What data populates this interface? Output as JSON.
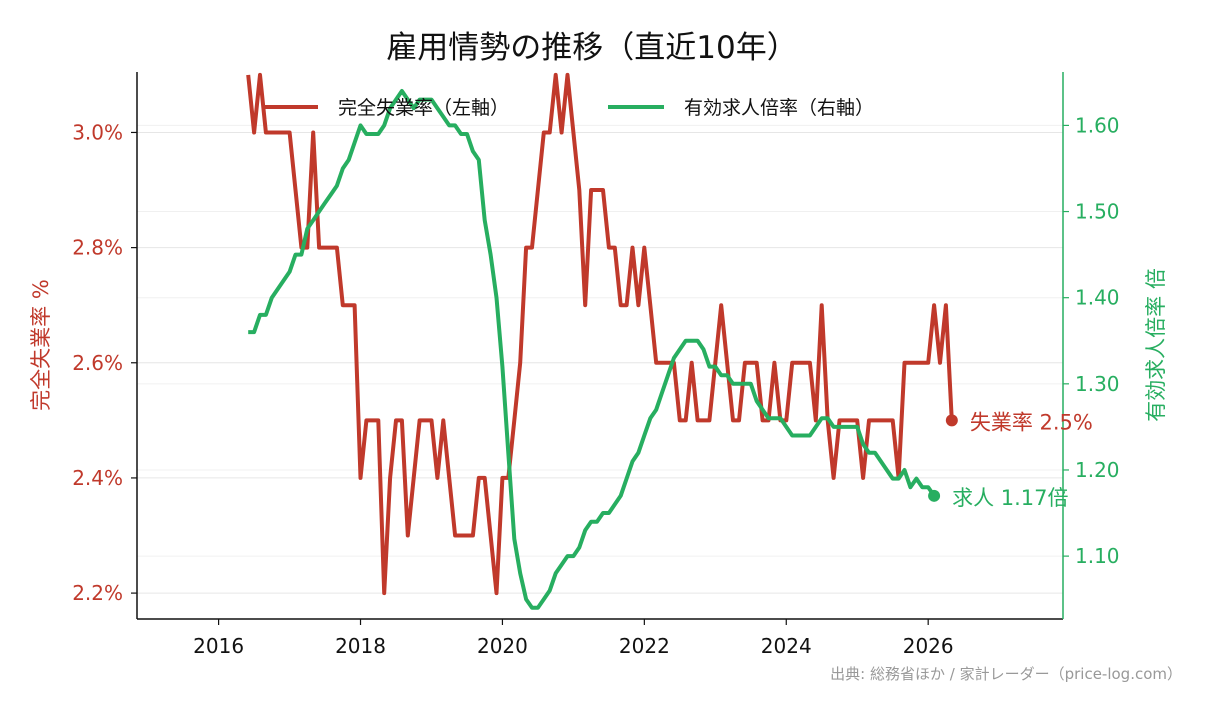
{
  "chart_data": {
    "type": "line",
    "title": "雇用情勢の推移（直近10年）",
    "source": "出典: 総務省ほか / 家計レーダー（price-log.com）",
    "x_axis": {
      "ticks": [
        "2016",
        "2018",
        "2020",
        "2022",
        "2024",
        "2026"
      ],
      "range": [
        2014.85,
        2027.9
      ]
    },
    "y_left": {
      "label": "完全失業率 %",
      "ticks": [
        "2.2%",
        "2.4%",
        "2.6%",
        "2.8%",
        "3.0%"
      ],
      "range": [
        2.155,
        3.105
      ],
      "color": "#c0392b"
    },
    "y_right": {
      "label": "有効求人倍率 倍",
      "ticks": [
        "1.10",
        "1.20",
        "1.30",
        "1.40",
        "1.50",
        "1.60"
      ],
      "range": [
        1.027,
        1.662
      ],
      "color": "#27ae60"
    },
    "legend": {
      "placement": "top-center",
      "entries": [
        "完全失業率（左軸）",
        "有効求人倍率（右軸）"
      ]
    },
    "grid": true,
    "series": [
      {
        "name": "完全失業率（左軸）",
        "axis": "left",
        "color": "#c0392b",
        "start": [
          2016,
          6
        ],
        "values": [
          3.1,
          3.0,
          3.1,
          3.0,
          3.0,
          3.0,
          3.0,
          3.0,
          2.9,
          2.8,
          2.8,
          3.0,
          2.8,
          2.8,
          2.8,
          2.8,
          2.7,
          2.7,
          2.7,
          2.4,
          2.5,
          2.5,
          2.5,
          2.2,
          2.4,
          2.5,
          2.5,
          2.3,
          2.4,
          2.5,
          2.5,
          2.5,
          2.4,
          2.5,
          2.4,
          2.3,
          2.3,
          2.3,
          2.3,
          2.4,
          2.4,
          2.3,
          2.2,
          2.4,
          2.4,
          2.5,
          2.6,
          2.8,
          2.8,
          2.9,
          3.0,
          3.0,
          3.1,
          3.0,
          3.1,
          3.0,
          2.9,
          2.7,
          2.9,
          2.9,
          2.9,
          2.8,
          2.8,
          2.7,
          2.7,
          2.8,
          2.7,
          2.8,
          2.7,
          2.6,
          2.6,
          2.6,
          2.6,
          2.5,
          2.5,
          2.6,
          2.5,
          2.5,
          2.5,
          2.6,
          2.7,
          2.6,
          2.5,
          2.5,
          2.6,
          2.6,
          2.6,
          2.5,
          2.5,
          2.6,
          2.5,
          2.5,
          2.6,
          2.6,
          2.6,
          2.6,
          2.5,
          2.7,
          2.5,
          2.4,
          2.5,
          2.5,
          2.5,
          2.5,
          2.4,
          2.5,
          2.5,
          2.5,
          2.5,
          2.5,
          2.4,
          2.6,
          2.6,
          2.6,
          2.6,
          2.6,
          2.7,
          2.6,
          2.7,
          2.5
        ],
        "end_label": "失業率 2.5%"
      },
      {
        "name": "有効求人倍率（右軸）",
        "axis": "right",
        "color": "#27ae60",
        "start": [
          2016,
          6
        ],
        "values": [
          1.36,
          1.36,
          1.38,
          1.38,
          1.4,
          1.41,
          1.42,
          1.43,
          1.45,
          1.45,
          1.48,
          1.49,
          1.5,
          1.51,
          1.52,
          1.53,
          1.55,
          1.56,
          1.58,
          1.6,
          1.59,
          1.59,
          1.59,
          1.6,
          1.62,
          1.63,
          1.64,
          1.63,
          1.62,
          1.63,
          1.63,
          1.63,
          1.62,
          1.61,
          1.6,
          1.6,
          1.59,
          1.59,
          1.57,
          1.56,
          1.49,
          1.45,
          1.4,
          1.32,
          1.22,
          1.12,
          1.08,
          1.05,
          1.04,
          1.04,
          1.05,
          1.06,
          1.08,
          1.09,
          1.1,
          1.1,
          1.11,
          1.13,
          1.14,
          1.14,
          1.15,
          1.15,
          1.16,
          1.17,
          1.19,
          1.21,
          1.22,
          1.24,
          1.26,
          1.27,
          1.29,
          1.31,
          1.33,
          1.34,
          1.35,
          1.35,
          1.35,
          1.34,
          1.32,
          1.32,
          1.31,
          1.31,
          1.3,
          1.3,
          1.3,
          1.3,
          1.28,
          1.27,
          1.26,
          1.26,
          1.26,
          1.25,
          1.24,
          1.24,
          1.24,
          1.24,
          1.25,
          1.26,
          1.26,
          1.25,
          1.25,
          1.25,
          1.25,
          1.25,
          1.23,
          1.22,
          1.22,
          1.21,
          1.2,
          1.19,
          1.19,
          1.2,
          1.18,
          1.19,
          1.18,
          1.18,
          1.17
        ],
        "end_label": "求人 1.17倍"
      }
    ]
  }
}
